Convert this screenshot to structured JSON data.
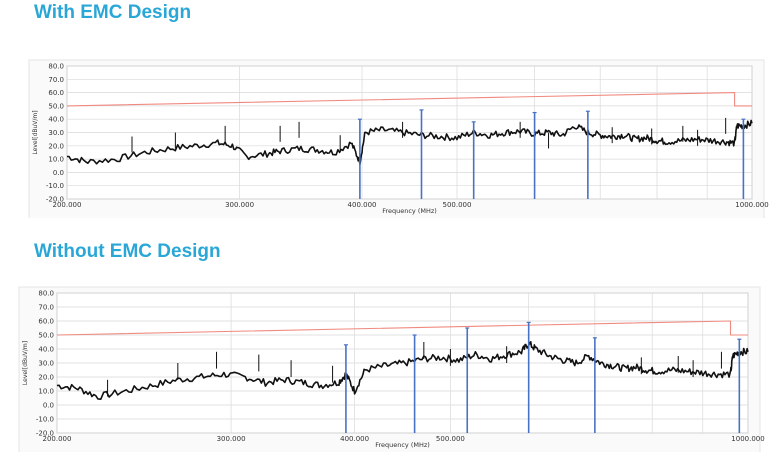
{
  "panels": [
    {
      "title": "With EMC Design"
    },
    {
      "title": "Without EMC Design"
    }
  ],
  "chart_data": [
    {
      "type": "line",
      "title": "With EMC Design",
      "xlabel": "Frequency (MHz)",
      "ylabel": "Level[dBuV/m]",
      "xscale": "log",
      "xlim": [
        200,
        1000
      ],
      "ylim": [
        -20,
        80
      ],
      "yticks": [
        80,
        70,
        60,
        50,
        40,
        30,
        20,
        10,
        0,
        -10,
        -20
      ],
      "ytick_labels": [
        "80.0",
        "70.0",
        "60.0",
        "50.0",
        "40.0",
        "30.0",
        "20.0",
        "10.0",
        "0.0",
        "-10.0",
        "-20.0"
      ],
      "xticks": [
        200,
        300,
        400,
        500,
        1000
      ],
      "xtick_labels": [
        "200.000",
        "300.000",
        "400.000",
        "500.000",
        "1000.000"
      ],
      "grid": true,
      "colors": {
        "trace": "#111111",
        "limit": "#f08a80",
        "peaks": "#4a72c4",
        "grid": "#d9d9d9"
      },
      "limit_line": {
        "x": [
          200,
          960,
          960,
          1000
        ],
        "y": [
          50,
          60,
          50,
          50
        ]
      },
      "trace": {
        "x": [
          200,
          210,
          225,
          240,
          255,
          270,
          285,
          295,
          305,
          320,
          330,
          345,
          360,
          375,
          390,
          398,
          403,
          420,
          440,
          460,
          480,
          500,
          520,
          540,
          560,
          580,
          600,
          620,
          640,
          660,
          680,
          700,
          720,
          740,
          760,
          780,
          800,
          820,
          850,
          880,
          910,
          940,
          960,
          965,
          980,
          1000
        ],
        "y": [
          12,
          8,
          10,
          15,
          18,
          20,
          22,
          20,
          12,
          14,
          16,
          18,
          17,
          15,
          22,
          8,
          30,
          32,
          30,
          28,
          27,
          26,
          30,
          28,
          30,
          31,
          29,
          30,
          28,
          35,
          30,
          28,
          27,
          28,
          25,
          26,
          24,
          23,
          24,
          25,
          24,
          23,
          22,
          35,
          35,
          37
        ]
      },
      "spikes": [
        {
          "x": 233,
          "y": 27
        },
        {
          "x": 258,
          "y": 30
        },
        {
          "x": 290,
          "y": 35
        },
        {
          "x": 330,
          "y": 35
        },
        {
          "x": 345,
          "y": 38
        },
        {
          "x": 380,
          "y": 28
        },
        {
          "x": 440,
          "y": 38
        },
        {
          "x": 580,
          "y": 38
        },
        {
          "x": 620,
          "y": 30
        },
        {
          "x": 720,
          "y": 34
        },
        {
          "x": 790,
          "y": 33
        },
        {
          "x": 850,
          "y": 35
        },
        {
          "x": 880,
          "y": 32
        },
        {
          "x": 940,
          "y": 41
        }
      ],
      "peaks": [
        {
          "x": 398,
          "y": 40
        },
        {
          "x": 460,
          "y": 47
        },
        {
          "x": 520,
          "y": 38
        },
        {
          "x": 600,
          "y": 45
        },
        {
          "x": 680,
          "y": 46
        },
        {
          "x": 980,
          "y": 40
        }
      ]
    },
    {
      "type": "line",
      "title": "Without EMC Design",
      "xlabel": "Frequency (MHz)",
      "ylabel": "Level[dBuV/m]",
      "xscale": "log",
      "xlim": [
        200,
        1000
      ],
      "ylim": [
        -20,
        80
      ],
      "yticks": [
        80,
        70,
        60,
        50,
        40,
        30,
        20,
        10,
        0,
        -10,
        -20
      ],
      "ytick_labels": [
        "80.0",
        "70.0",
        "60.0",
        "50.0",
        "40.0",
        "30.0",
        "20.0",
        "10.0",
        "0.0",
        "-10.0",
        "-20.0"
      ],
      "xticks": [
        200,
        300,
        400,
        500,
        1000
      ],
      "xtick_labels": [
        "200.000",
        "300.000",
        "400.000",
        "500.000",
        "1000.000"
      ],
      "grid": true,
      "colors": {
        "trace": "#111111",
        "limit": "#f08a80",
        "peaks": "#4a72c4",
        "grid": "#d9d9d9"
      },
      "limit_line": {
        "x": [
          200,
          960,
          960,
          1000
        ],
        "y": [
          50,
          60,
          50,
          50
        ]
      },
      "trace": {
        "x": [
          200,
          210,
          220,
          235,
          250,
          265,
          280,
          295,
          310,
          325,
          340,
          355,
          370,
          385,
          392,
          400,
          410,
          430,
          450,
          470,
          490,
          510,
          530,
          550,
          570,
          590,
          600,
          610,
          630,
          650,
          670,
          690,
          710,
          730,
          750,
          770,
          790,
          810,
          840,
          870,
          900,
          930,
          960,
          965,
          980,
          1000
        ],
        "y": [
          14,
          12,
          6,
          10,
          14,
          18,
          20,
          22,
          20,
          16,
          18,
          16,
          14,
          16,
          22,
          10,
          25,
          28,
          30,
          33,
          34,
          32,
          36,
          33,
          36,
          38,
          44,
          40,
          35,
          32,
          30,
          35,
          30,
          28,
          26,
          27,
          25,
          24,
          25,
          24,
          23,
          22,
          22,
          35,
          38,
          38
        ]
      },
      "spikes": [
        {
          "x": 225,
          "y": 18
        },
        {
          "x": 265,
          "y": 30
        },
        {
          "x": 290,
          "y": 38
        },
        {
          "x": 320,
          "y": 36
        },
        {
          "x": 345,
          "y": 32
        },
        {
          "x": 380,
          "y": 28
        },
        {
          "x": 470,
          "y": 45
        },
        {
          "x": 500,
          "y": 40
        },
        {
          "x": 570,
          "y": 42
        },
        {
          "x": 700,
          "y": 40
        },
        {
          "x": 780,
          "y": 34
        },
        {
          "x": 850,
          "y": 35
        },
        {
          "x": 880,
          "y": 32
        },
        {
          "x": 940,
          "y": 38
        }
      ],
      "peaks": [
        {
          "x": 392,
          "y": 43
        },
        {
          "x": 460,
          "y": 50
        },
        {
          "x": 520,
          "y": 55
        },
        {
          "x": 600,
          "y": 59
        },
        {
          "x": 700,
          "y": 48
        },
        {
          "x": 980,
          "y": 47
        }
      ]
    }
  ]
}
